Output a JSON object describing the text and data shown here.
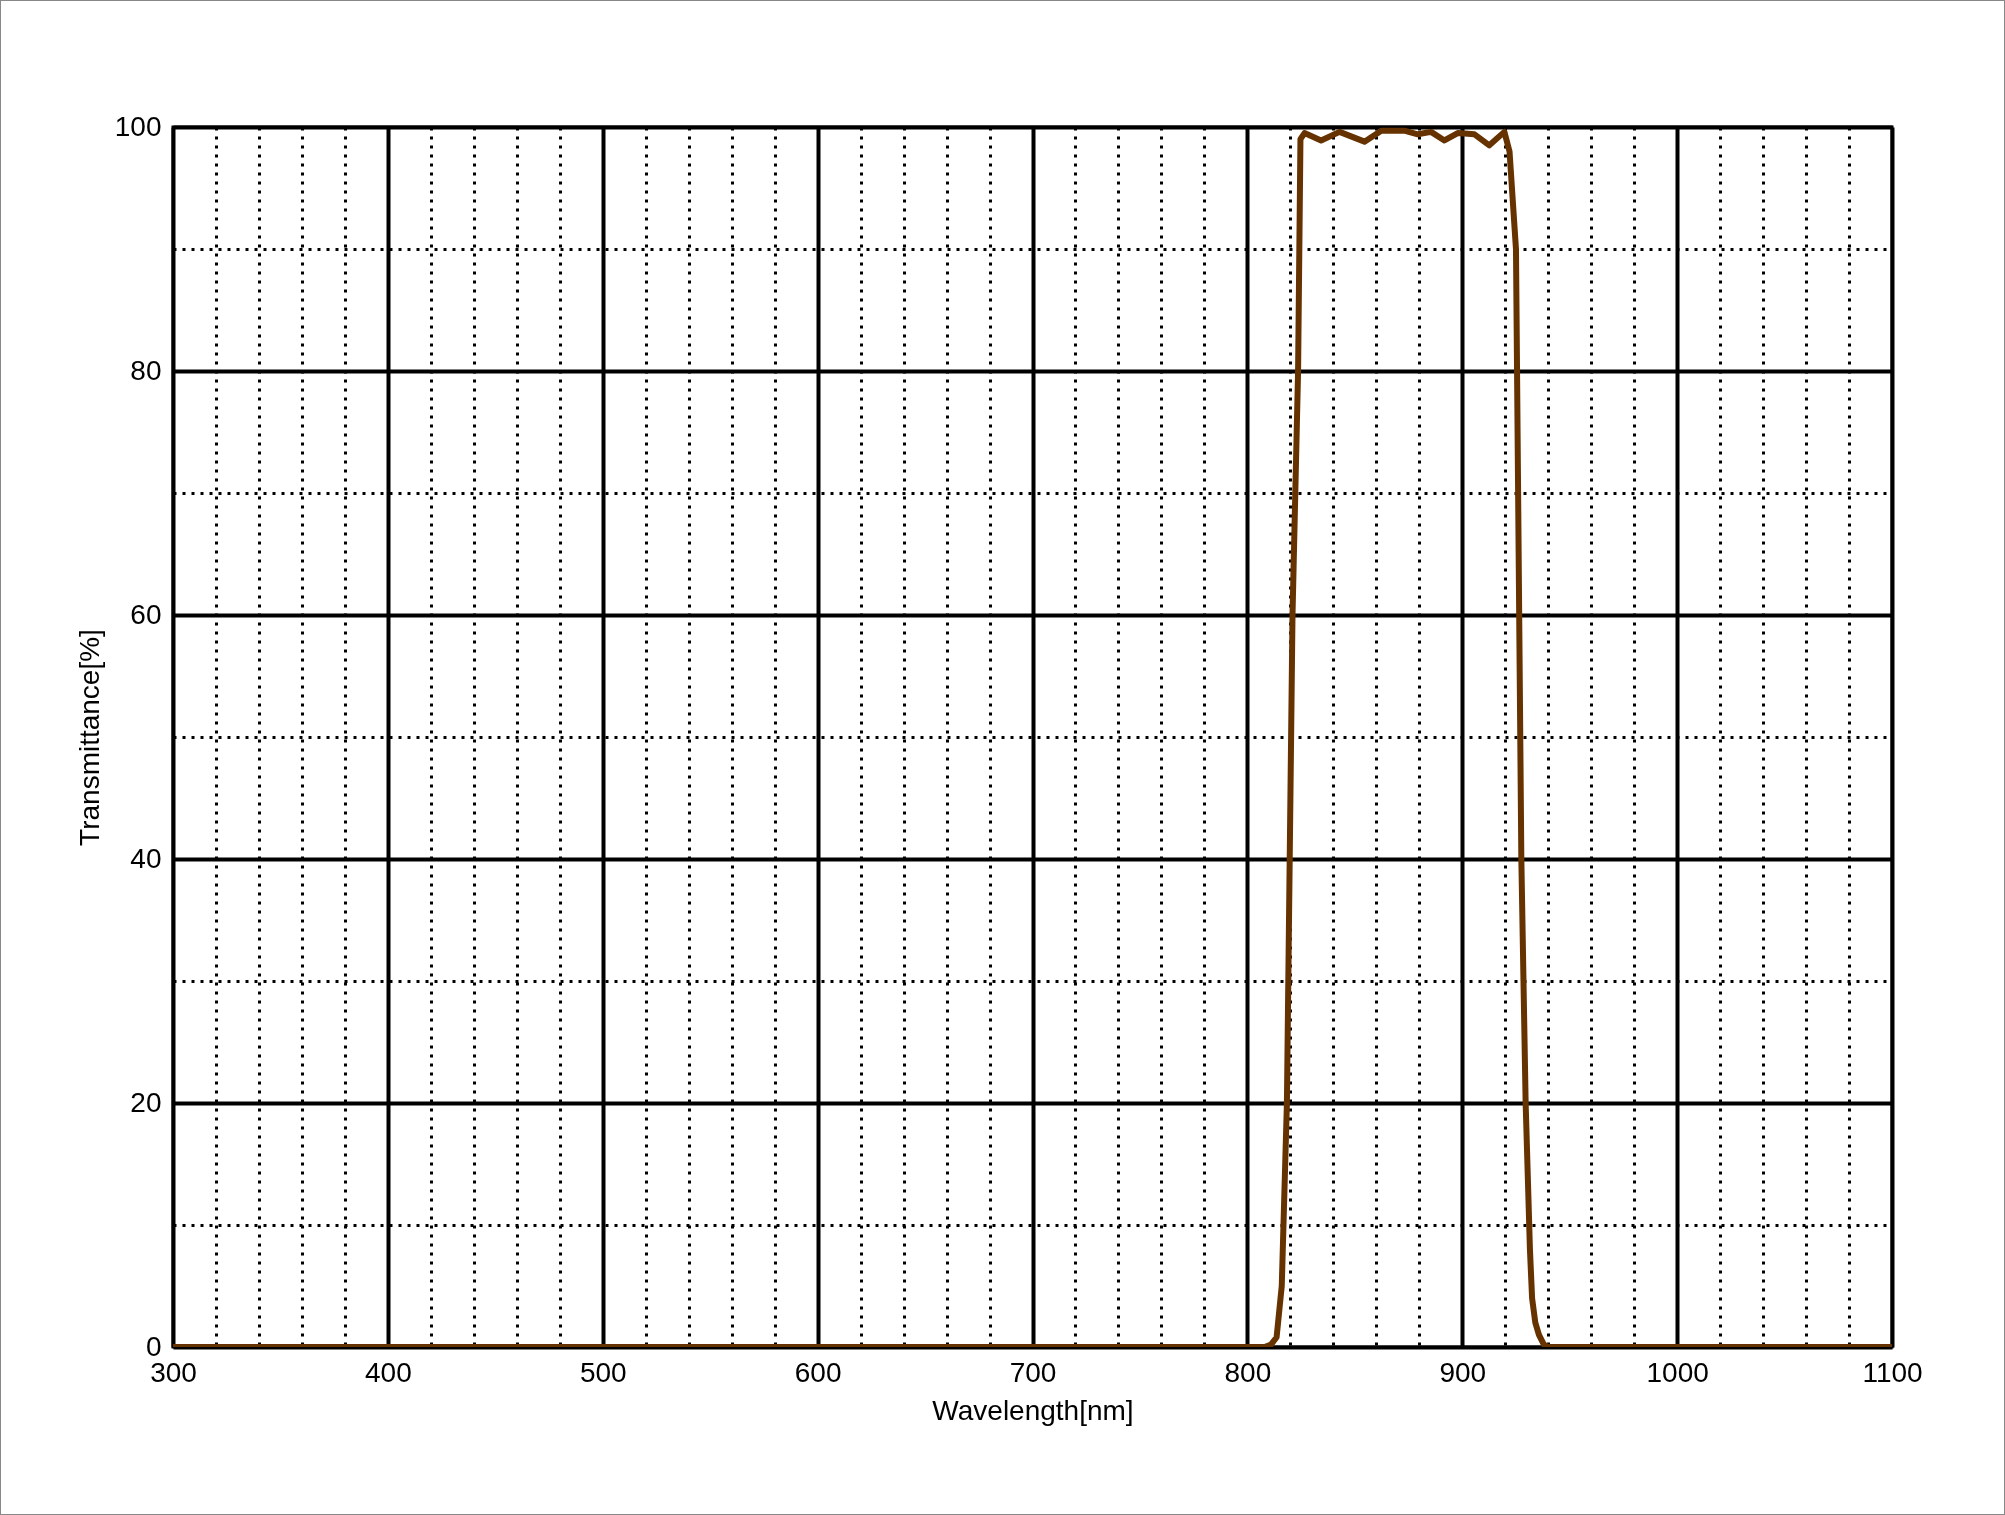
{
  "chart_data": {
    "type": "line",
    "xlabel": "Wavelength[nm]",
    "ylabel": "Transmittance[%]",
    "x": [
      300,
      500,
      700,
      800,
      808,
      811,
      813.6,
      816,
      818.4,
      821,
      823.6,
      824.7,
      826.6,
      834.3,
      842.9,
      854.5,
      862.3,
      873,
      879.3,
      885.5,
      891.7,
      897.9,
      905.7,
      912.6,
      919.6,
      922,
      925,
      927.5,
      929.5,
      931.5,
      932.5,
      934,
      935.7,
      938,
      940,
      1000,
      1100
    ],
    "series": [
      {
        "color": "#663300",
        "values": [
          0,
          0,
          0,
          0,
          0,
          0.2,
          0.8,
          5,
          20,
          60,
          80,
          99,
          99.5,
          98.9,
          99.6,
          98.8,
          99.7,
          99.7,
          99.4,
          99.6,
          98.9,
          99.5,
          99.4,
          98.5,
          99.6,
          98,
          90,
          40,
          20,
          8,
          4,
          2,
          1,
          0.2,
          0,
          0,
          0
        ]
      }
    ],
    "xlim": [
      300,
      1100
    ],
    "ylim": [
      0,
      100
    ],
    "xticks": [
      300,
      {
        "value": 320,
        "label": null
      },
      {
        "value": 340,
        "label": null
      },
      {
        "value": 360,
        "label": null
      },
      {
        "value": 380,
        "label": null
      },
      400,
      {
        "value": 420,
        "label": null
      },
      {
        "value": 440,
        "label": null
      },
      {
        "value": 460,
        "label": null
      },
      {
        "value": 480,
        "label": null
      },
      500,
      {
        "value": 520,
        "label": null
      },
      {
        "value": 540,
        "label": null
      },
      {
        "value": 560,
        "label": null
      },
      {
        "value": 580,
        "label": null
      },
      600,
      {
        "value": 620,
        "label": null
      },
      {
        "value": 640,
        "label": null
      },
      {
        "value": 660,
        "label": null
      },
      {
        "value": 680,
        "label": null
      },
      700,
      {
        "value": 720,
        "label": null
      },
      {
        "value": 740,
        "label": null
      },
      {
        "value": 760,
        "label": null
      },
      {
        "value": 780,
        "label": null
      },
      800,
      {
        "value": 820,
        "label": null
      },
      {
        "value": 840,
        "label": null
      },
      {
        "value": 860,
        "label": null
      },
      {
        "value": 880,
        "label": null
      },
      900,
      {
        "value": 920,
        "label": null
      },
      {
        "value": 940,
        "label": null
      },
      {
        "value": 960,
        "label": null
      },
      {
        "value": 980,
        "label": null
      },
      1000,
      {
        "value": 1020,
        "label": null
      },
      {
        "value": 1040,
        "label": null
      },
      {
        "value": 1060,
        "label": null
      },
      {
        "value": 1080,
        "label": null
      },
      1100
    ],
    "yticks": [
      0,
      {
        "value": 10,
        "label": null
      },
      20,
      {
        "value": 30,
        "label": null
      },
      40,
      {
        "value": 50,
        "label": null
      },
      60,
      {
        "value": 70,
        "label": null
      },
      80,
      {
        "value": 90,
        "label": null
      },
      100
    ],
    "grid": true,
    "marker": "none",
    "line_style": "solid"
  }
}
